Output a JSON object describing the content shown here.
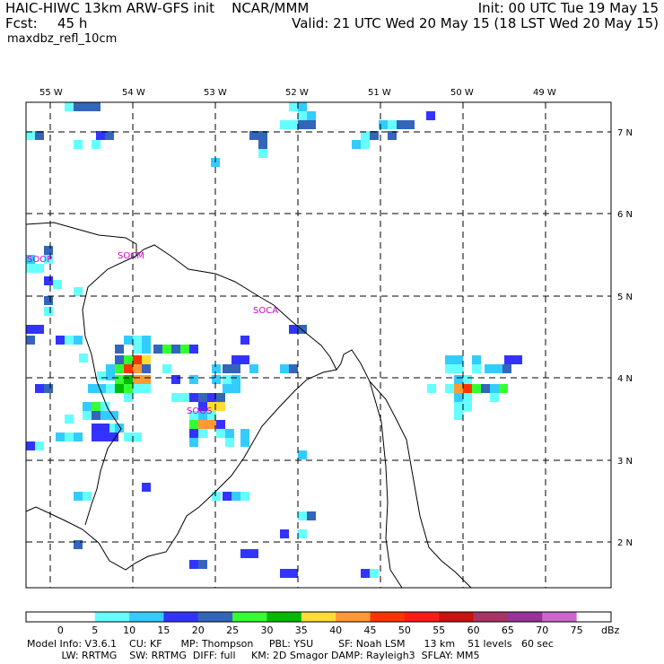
{
  "header": {
    "title_left": "HAIC-HIWC 13km ARW-GFS init    NCAR/MMM",
    "init": "Init: 00 UTC Tue 19 May 15",
    "fcst_label": "Fcst:",
    "fcst_value": "45 h",
    "valid": "Valid: 21 UTC Wed 20 May 15 (18 LST Wed 20 May 15)",
    "variable": "maxdbz_refl_10cm"
  },
  "map": {
    "lon_labels": [
      "55 W",
      "54 W",
      "53 W",
      "52 W",
      "51 W",
      "50 W",
      "49 W"
    ],
    "lat_labels": [
      "7 N",
      "6 N",
      "5 N",
      "4 N",
      "3 N",
      "2 N"
    ],
    "stations": [
      "SOOP",
      "SOCM",
      "SOCA",
      "SOOS"
    ]
  },
  "colorbar": {
    "ticks": [
      "0",
      "5",
      "10",
      "15",
      "20",
      "25",
      "30",
      "35",
      "40",
      "45",
      "50",
      "55",
      "60",
      "65",
      "70",
      "75"
    ],
    "unit": "dBz",
    "colors": [
      "#ffffff",
      "#ffffff",
      "#66ffff",
      "#33ccff",
      "#3333ff",
      "#3366bb",
      "#33ff33",
      "#00bb00",
      "#ffdd33",
      "#ff9933",
      "#ff3300",
      "#ff1a1a",
      "#cc1111",
      "#aa3366",
      "#993399",
      "#cc66cc",
      "#ffffff"
    ]
  },
  "model_info": {
    "line1": "Model Info: V3.6.1    CU: KF      MP: Thompson     PBL: YSU        SF: Noah LSM      13 km    51 levels   60 sec",
    "line2": "           LW: RRTMG    SW: RRTMG  DIFF: full     KM: 2D Smagor DAMP: Rayleigh3  SFLAY: MM5"
  }
}
